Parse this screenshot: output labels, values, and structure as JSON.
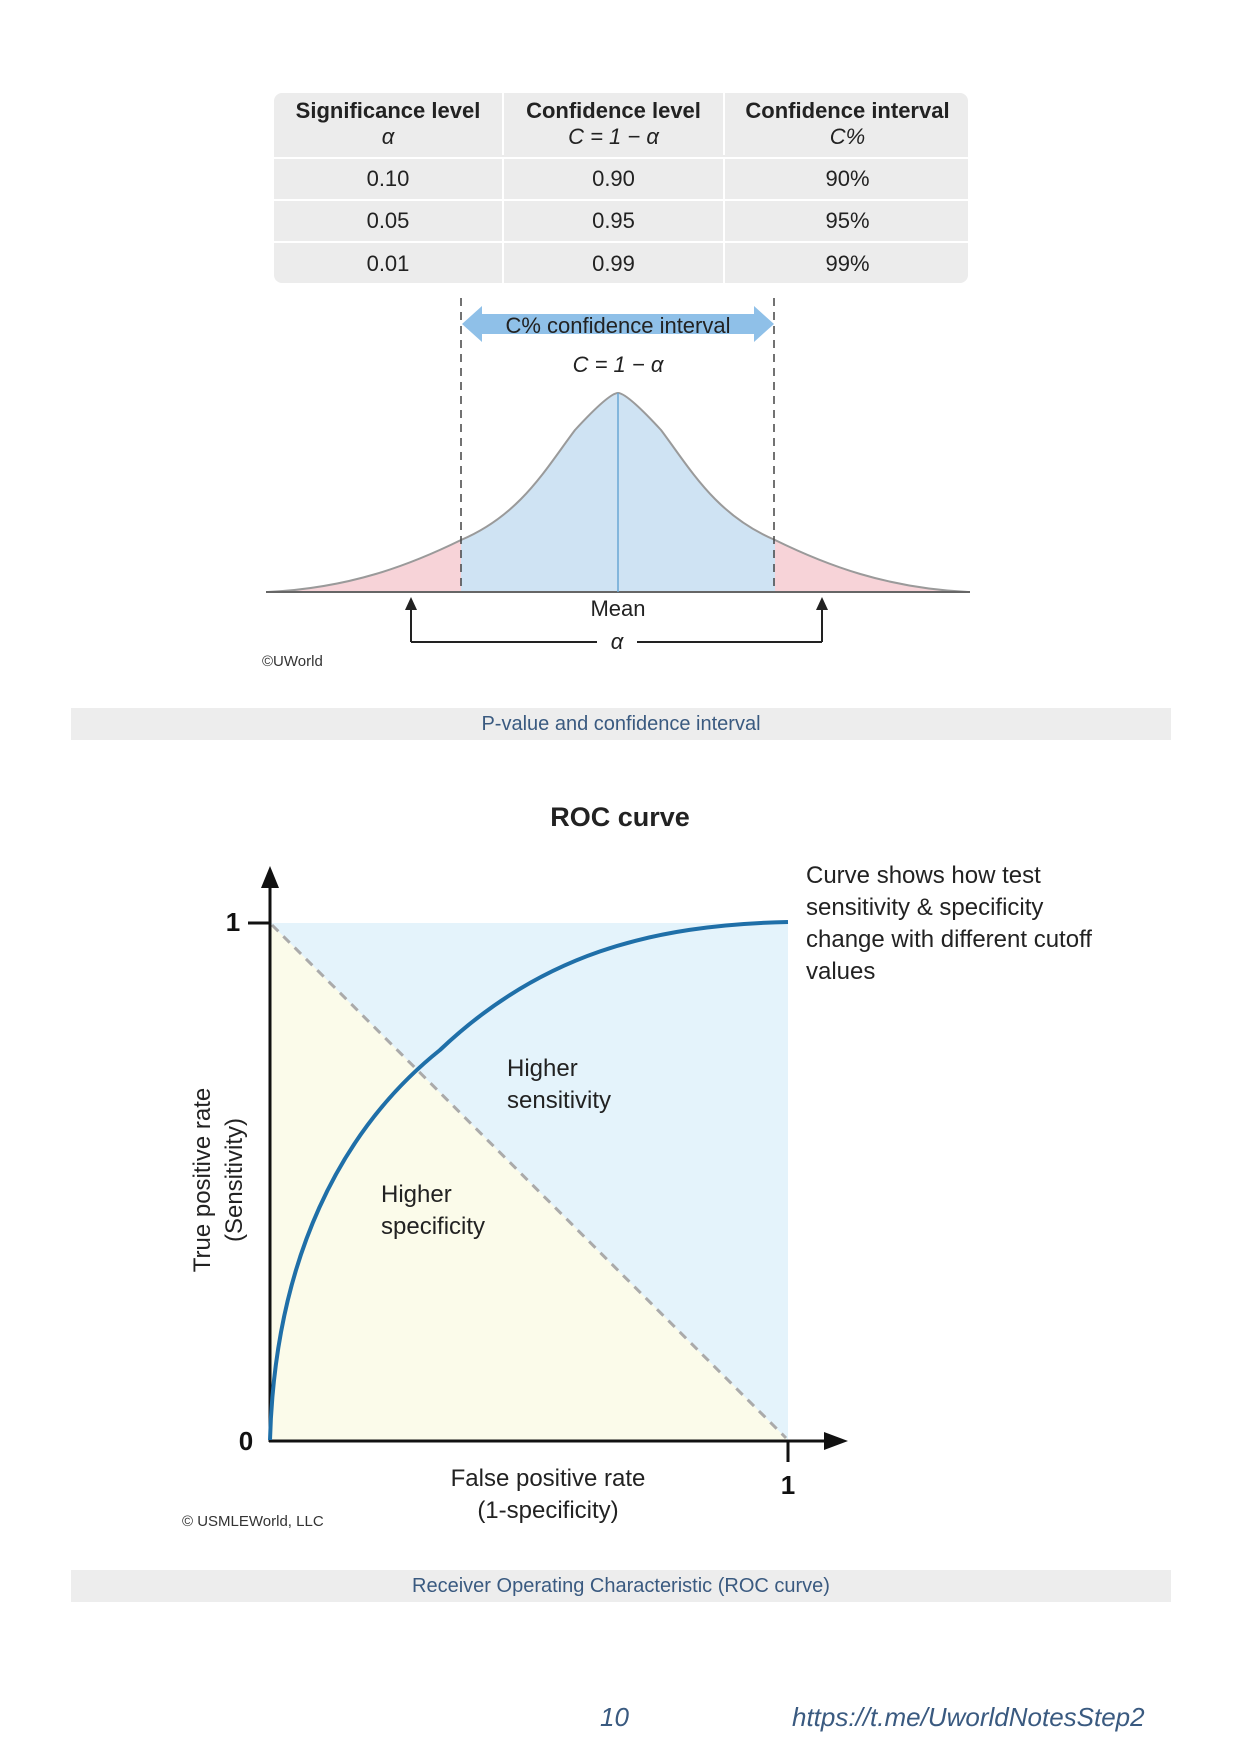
{
  "table": {
    "headers": [
      {
        "label": "Significance level",
        "symbol": "α"
      },
      {
        "label": "Confidence level",
        "symbol": "C = 1 − α"
      },
      {
        "label": "Confidence interval",
        "symbol": "C%"
      }
    ],
    "rows": [
      [
        "0.10",
        "0.90",
        "90%"
      ],
      [
        "0.05",
        "0.95",
        "95%"
      ],
      [
        "0.01",
        "0.99",
        "99%"
      ]
    ]
  },
  "pvalue_figure": {
    "interval_label": "C% confidence interval",
    "formula": "C = 1 − α",
    "mean_label": "Mean",
    "alpha_label": "α",
    "credit": "©UWorld",
    "caption": "P-value and confidence interval",
    "colors": {
      "center": "#cfe3f3",
      "tails": "#f7d3d8",
      "arrow": "#8fc0e8"
    }
  },
  "roc_figure": {
    "title": "ROC curve",
    "y_axis_label_line1": "True positive rate",
    "y_axis_label_line2": "(Sensitivity)",
    "x_axis_label_line1": "False positive rate",
    "x_axis_label_line2": "(1-specificity)",
    "y_tick_top": "1",
    "y_tick_bottom": "0",
    "x_tick_right": "1",
    "region_upper_line1": "Higher",
    "region_upper_line2": "sensitivity",
    "region_lower_line1": "Higher",
    "region_lower_line2": "specificity",
    "note": "Curve shows how test sensitivity & specificity change with different cutoff values",
    "credit": "© USMLEWorld, LLC",
    "caption": "Receiver Operating Characteristic (ROC curve)",
    "colors": {
      "curve": "#1f6fa8",
      "upper_region": "#e4f3fb",
      "lower_region": "#fbfbea",
      "diagonal": "#aaaaaa"
    }
  },
  "footer": {
    "page_number": "10",
    "link": "https://t.me/UworldNotesStep2"
  }
}
